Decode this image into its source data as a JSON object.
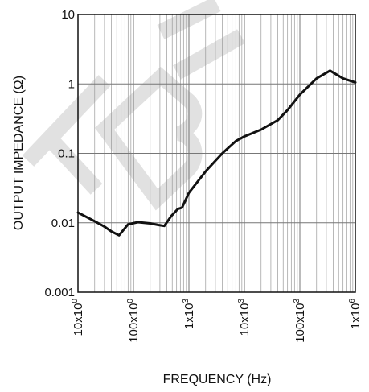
{
  "watermark": {
    "text": "XBL",
    "color": "#dadada"
  },
  "chart_data": {
    "type": "line",
    "title": "",
    "xlabel": "FREQUENCY (Hz)",
    "ylabel": "OUTPUT IMPEDANCE (Ω)",
    "x_scale": "log",
    "y_scale": "log",
    "xlim": [
      10,
      1000000
    ],
    "ylim": [
      0.001,
      10
    ],
    "grid": true,
    "line_color": "#111111",
    "x_ticks": [
      {
        "value": 10,
        "label": "10x10",
        "exp": "0"
      },
      {
        "value": 100,
        "label": "100x10",
        "exp": "0"
      },
      {
        "value": 1000,
        "label": "1x10",
        "exp": "3"
      },
      {
        "value": 10000,
        "label": "10x10",
        "exp": "3"
      },
      {
        "value": 100000,
        "label": "100x10",
        "exp": "3"
      },
      {
        "value": 1000000,
        "label": "1x10",
        "exp": "6"
      }
    ],
    "y_ticks": [
      {
        "value": 0.001,
        "label": "0.001"
      },
      {
        "value": 0.01,
        "label": "0.01"
      },
      {
        "value": 0.1,
        "label": "0.1"
      },
      {
        "value": 1,
        "label": "1"
      },
      {
        "value": 10,
        "label": "10"
      }
    ],
    "series": [
      {
        "x": [
          10,
          18,
          30,
          40,
          55,
          80,
          120,
          200,
          280,
          360,
          480,
          630,
          750,
          1000,
          2000,
          4000,
          7000,
          10000,
          20000,
          40000,
          60000,
          100000,
          200000,
          350000,
          600000,
          1000000
        ],
        "y": [
          0.014,
          0.011,
          0.0088,
          0.0075,
          0.0066,
          0.0095,
          0.0102,
          0.0098,
          0.0093,
          0.009,
          0.0125,
          0.0158,
          0.0165,
          0.027,
          0.055,
          0.1,
          0.15,
          0.175,
          0.22,
          0.3,
          0.42,
          0.7,
          1.2,
          1.55,
          1.2,
          1.05
        ]
      }
    ]
  }
}
